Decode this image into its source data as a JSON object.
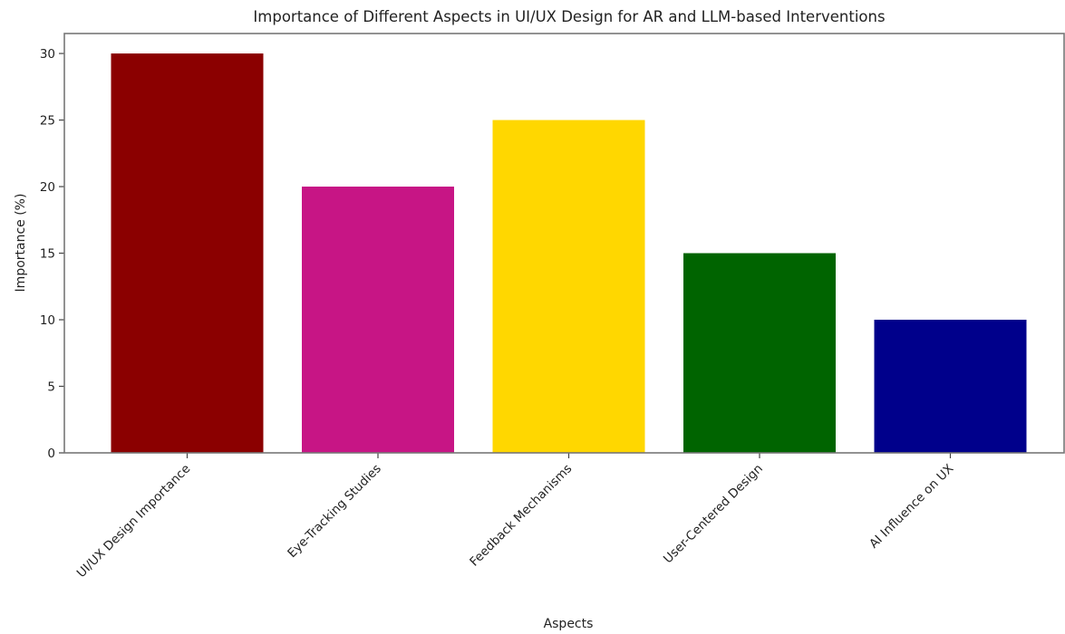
{
  "chart_data": {
    "type": "bar",
    "title": "Importance of Different Aspects in UI/UX Design for AR and LLM-based Interventions",
    "xlabel": "Aspects",
    "ylabel": "Importance (%)",
    "categories": [
      "UI/UX Design Importance",
      "Eye-Tracking Studies",
      "Feedback Mechanisms",
      "User-Centered Design",
      "AI Influence on UX"
    ],
    "values": [
      30,
      20,
      25,
      15,
      10
    ],
    "colors": [
      "#8b0000",
      "#c71585",
      "#ffd700",
      "#006400",
      "#00008b"
    ],
    "ylim": [
      0,
      31.5
    ],
    "yticks": [
      0,
      5,
      10,
      15,
      20,
      25,
      30
    ],
    "grid": false,
    "legend": "none"
  }
}
